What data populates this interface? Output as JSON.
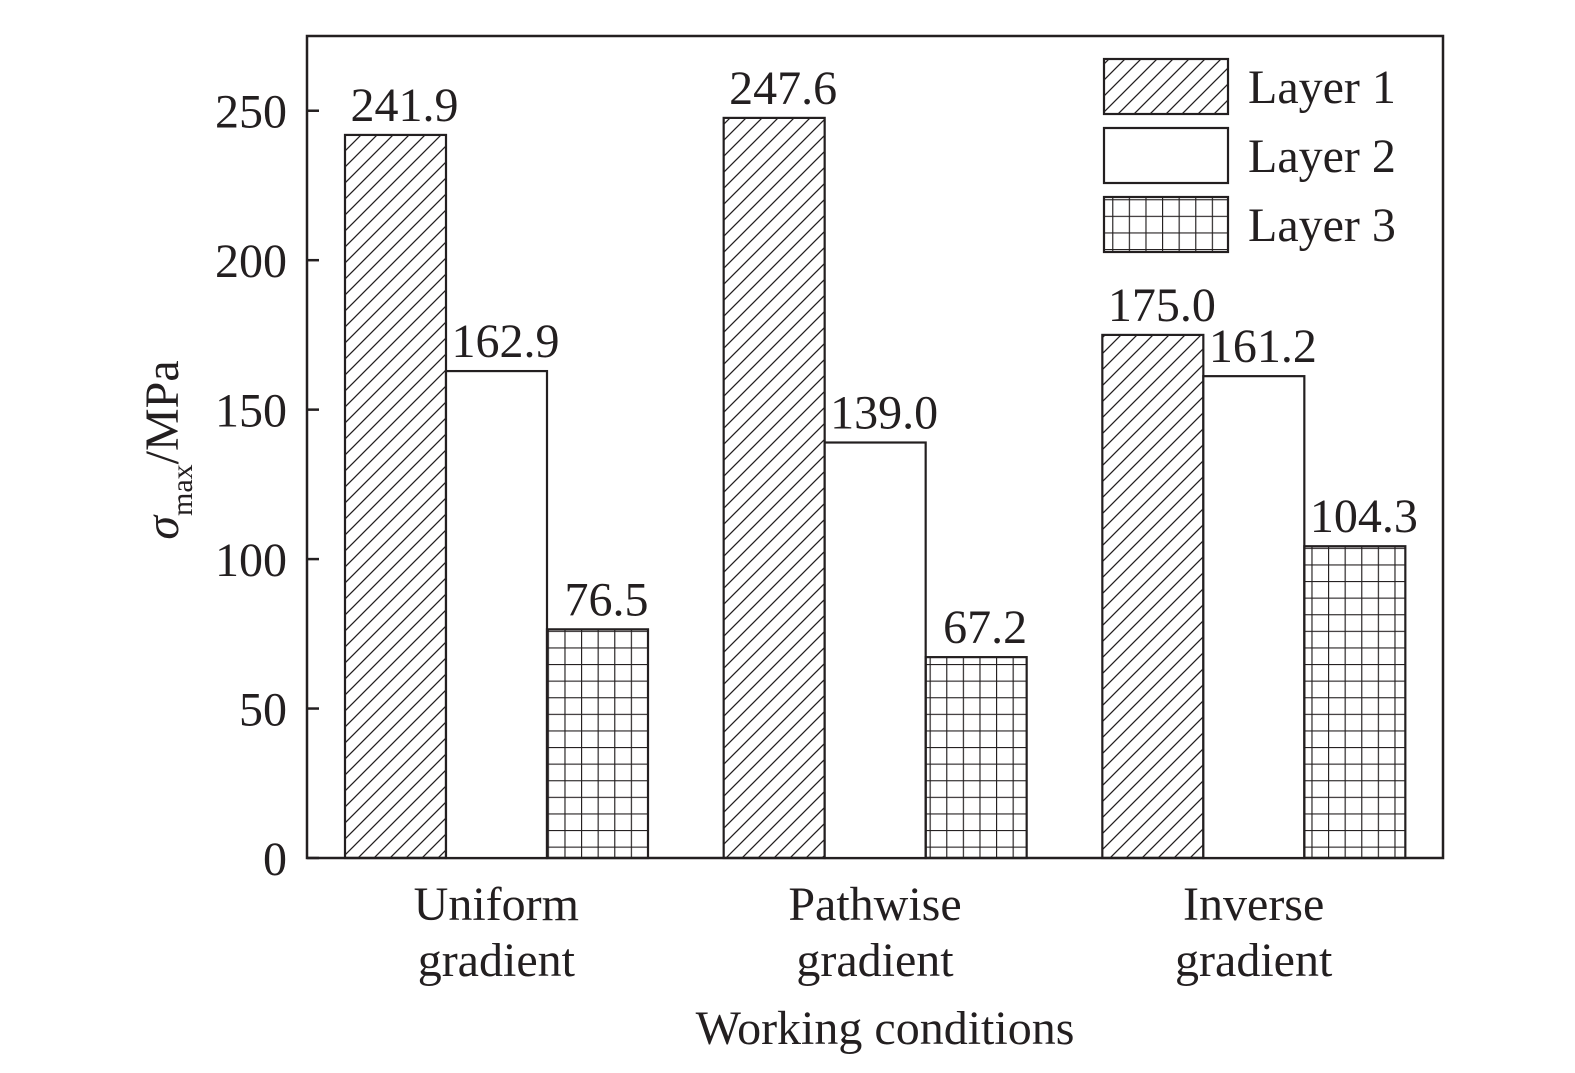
{
  "chart_data": {
    "type": "bar",
    "categories": [
      [
        "Uniform",
        "gradient"
      ],
      [
        "Pathwise",
        "gradient"
      ],
      [
        "Inverse",
        "gradient"
      ]
    ],
    "series": [
      {
        "name": "Layer 1",
        "values": [
          241.9,
          247.6,
          175.0
        ],
        "labels": [
          "241.9",
          "247.6",
          "175.0"
        ],
        "pattern": "hatch"
      },
      {
        "name": "Layer 2",
        "values": [
          162.9,
          139.0,
          161.2
        ],
        "labels": [
          "162.9",
          "139.0",
          "161.2"
        ],
        "pattern": "none"
      },
      {
        "name": "Layer 3",
        "values": [
          76.5,
          67.2,
          104.3
        ],
        "labels": [
          "76.5",
          "67.2",
          "104.3"
        ],
        "pattern": "grid"
      }
    ],
    "xlabel": "Working conditions",
    "ylabel": {
      "symbol": "σ",
      "subscript": "max",
      "unit": "/MPa"
    },
    "ylim": [
      0,
      275
    ],
    "yticks": [
      0,
      50,
      100,
      150,
      200,
      250
    ],
    "legend_position": "top-right",
    "grid": false,
    "colors": {
      "line": "#231f20",
      "fill": "#ffffff"
    }
  }
}
